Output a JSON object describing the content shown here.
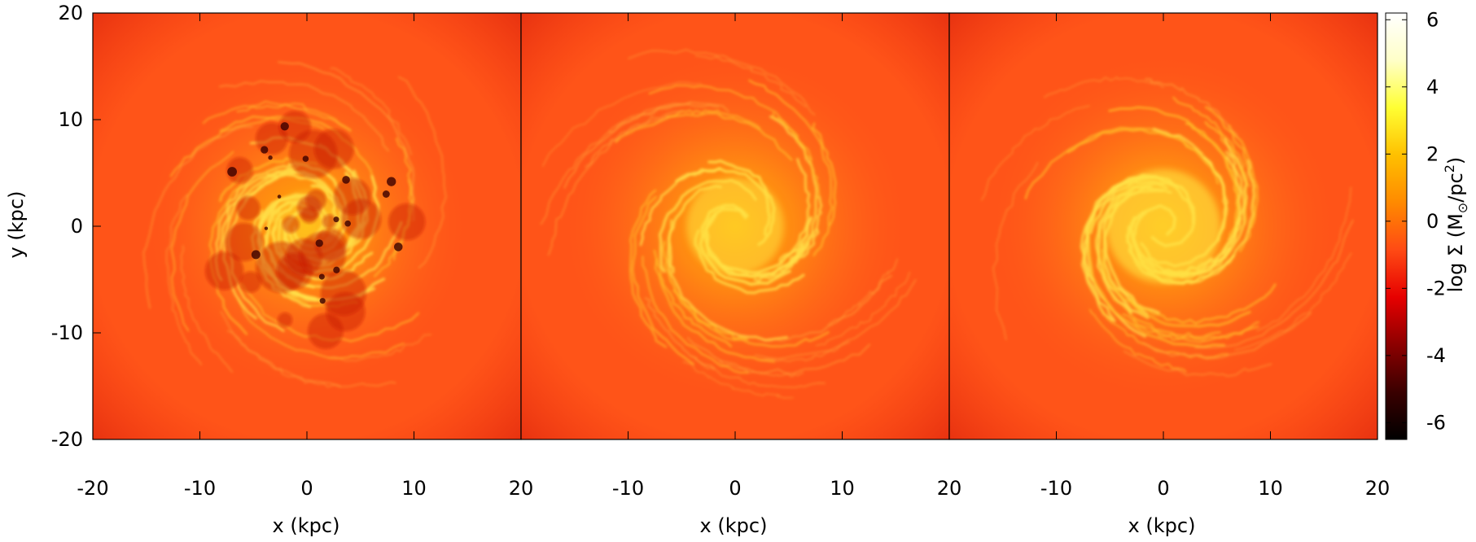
{
  "chart_data": [
    {
      "type": "heatmap",
      "title": "",
      "xlabel": "x (kpc)",
      "ylabel": "y (kpc)",
      "xlim": [
        -20,
        20
      ],
      "ylim": [
        -20,
        20
      ],
      "x_ticks": [
        "-20",
        "-10",
        "0",
        "10",
        "20"
      ],
      "y_ticks": [
        "-20",
        "-10",
        "0",
        "10",
        "20"
      ],
      "spiral": {
        "arms": 3,
        "pitch": 0.28,
        "disk_radius_kpc": 14,
        "core_boost": 0.4,
        "voids": true
      }
    },
    {
      "type": "heatmap",
      "title": "",
      "xlabel": "x (kpc)",
      "ylabel": "",
      "xlim": [
        -20,
        20
      ],
      "ylim": [
        -20,
        20
      ],
      "x_ticks": [
        "-10",
        "0",
        "10",
        "20"
      ],
      "y_ticks": [],
      "spiral": {
        "arms": 2,
        "pitch": 0.32,
        "disk_radius_kpc": 15,
        "core_boost": 0.9,
        "voids": false
      }
    },
    {
      "type": "heatmap",
      "title": "",
      "xlabel": "x (kpc)",
      "ylabel": "",
      "xlim": [
        -20,
        20
      ],
      "ylim": [
        -20,
        20
      ],
      "x_ticks": [
        "-10",
        "0",
        "10",
        "20"
      ],
      "y_ticks": [],
      "spiral": {
        "arms": 2,
        "pitch": 0.3,
        "disk_radius_kpc": 15,
        "core_boost": 1.2,
        "voids": false
      }
    }
  ],
  "colorbar": {
    "label_main": "log Σ (M",
    "label_sun": "⊙",
    "label_mid": "/pc",
    "label_sup": "2",
    "label_end": ")",
    "range": [
      -6.5,
      6.2
    ],
    "ticks": [
      "6",
      "4",
      "2",
      "0",
      "-2",
      "-4",
      "-6"
    ],
    "colors": [
      "#000000",
      "#3a0000",
      "#8c0000",
      "#e60000",
      "#ff4a14",
      "#ff8a00",
      "#ffc000",
      "#ffff33",
      "#ffffc8",
      "#ffffff"
    ]
  }
}
